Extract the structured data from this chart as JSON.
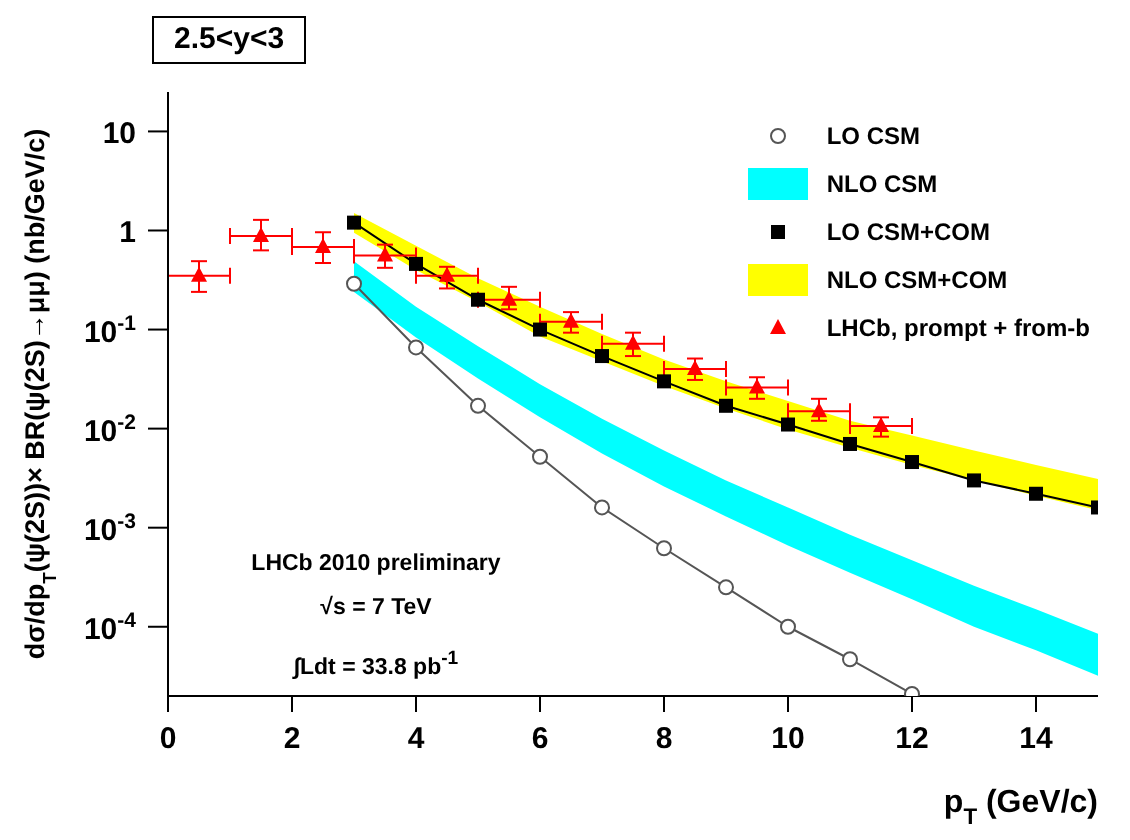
{
  "chart_data": {
    "type": "line",
    "title": "2.5<y<3",
    "xlabel": "p$_{T}$ (GeV/c)",
    "ylabel": "dσ/dp$_{T}$(ψ(2S))× BR(ψ(2S)→μμ) (nb/GeV/c)",
    "log": "y",
    "xlim": [
      0,
      15
    ],
    "xticks": [
      0,
      2,
      4,
      6,
      8,
      10,
      12,
      14
    ],
    "ylim": [
      2e-05,
      25
    ],
    "yticks": [
      {
        "value": 0.0001,
        "label": "10$^{-4}$"
      },
      {
        "value": 0.001,
        "label": "10$^{-3}$"
      },
      {
        "value": 0.01,
        "label": "10$^{-2}$"
      },
      {
        "value": 0.1,
        "label": "10$^{-1}$"
      },
      1,
      10
    ],
    "legend": "top right",
    "annotations": [
      "LHCb 2010 preliminary",
      "√s = 7 TeV",
      "∫Ldt = 33.8 pb$^{-1}$"
    ],
    "series": [
      {
        "name": "LO CSM",
        "color": "#555555",
        "marker": "circle",
        "x": [
          3,
          4,
          5,
          6,
          7,
          8,
          9,
          10,
          11,
          12
        ],
        "values": [
          0.29,
          0.066,
          0.017,
          0.0052,
          0.0016,
          0.00062,
          0.00025,
          0.0001,
          4.7e-05,
          2.1e-05
        ]
      },
      {
        "name": "NLO CSM",
        "type": "area",
        "color": "#00ffff",
        "x": [
          3,
          4,
          5,
          6,
          7,
          8,
          9,
          10,
          11,
          12,
          13,
          14,
          15
        ],
        "values": [
          null,
          null,
          null,
          null,
          null,
          null,
          null,
          null,
          null,
          null,
          null,
          null,
          null
        ],
        "lower": [
          0.24,
          0.083,
          0.032,
          0.013,
          0.0056,
          0.0026,
          0.0013,
          0.00066,
          0.00035,
          0.00019,
          0.0001,
          5.8e-05,
          3.2e-05
        ],
        "upper": [
          0.49,
          0.17,
          0.068,
          0.028,
          0.0126,
          0.006,
          0.003,
          0.0016,
          0.00085,
          0.00047,
          0.00026,
          0.00015,
          8.5e-05
        ]
      },
      {
        "name": "LO CSM+COM",
        "color": "#000000",
        "marker": "square",
        "x": [
          3,
          4,
          5,
          6,
          7,
          8,
          9,
          10,
          11,
          12,
          13,
          14,
          15
        ],
        "values": [
          1.2,
          0.46,
          0.2,
          0.1,
          0.054,
          0.03,
          0.017,
          0.011,
          0.007,
          0.0046,
          0.003,
          0.0022,
          0.0016
        ]
      },
      {
        "name": "NLO CSM+COM",
        "type": "area",
        "color": "#ffff00",
        "x": [
          3,
          4,
          5,
          6,
          7,
          8,
          9,
          10,
          11,
          12,
          13,
          14,
          15
        ],
        "values": [
          null,
          null,
          null,
          null,
          null,
          null,
          null,
          null,
          null,
          null,
          null,
          null,
          null
        ],
        "lower": [
          0.95,
          0.4,
          0.19,
          0.085,
          0.048,
          0.027,
          0.016,
          0.0098,
          0.0064,
          0.0043,
          0.003,
          0.0021,
          0.0015
        ],
        "upper": [
          1.5,
          0.7,
          0.33,
          0.17,
          0.09,
          0.05,
          0.03,
          0.019,
          0.012,
          0.0085,
          0.006,
          0.0043,
          0.0031
        ]
      },
      {
        "name": "LHCb, prompt + from-b",
        "type": "scatter",
        "color": "#ff0000",
        "marker": "triangle",
        "x": [
          0.5,
          1.5,
          2.5,
          3.5,
          4.5,
          5.5,
          6.5,
          7.5,
          8.5,
          9.5,
          10.5,
          11.5
        ],
        "values": [
          0.35,
          0.88,
          0.68,
          0.56,
          0.35,
          0.2,
          0.12,
          0.072,
          0.04,
          0.026,
          0.015,
          0.0106
        ],
        "errors": [
          [
            0.24,
            0.49
          ],
          [
            0.63,
            1.28
          ],
          [
            0.47,
            0.96
          ],
          [
            0.42,
            0.72
          ],
          [
            0.26,
            0.43
          ],
          [
            0.16,
            0.27
          ],
          [
            0.093,
            0.15
          ],
          [
            0.054,
            0.093
          ],
          [
            0.031,
            0.051
          ],
          [
            0.02,
            0.033
          ],
          [
            0.012,
            0.02
          ],
          [
            0.0083,
            0.013
          ]
        ],
        "xerrors": [
          0.5,
          0.5,
          0.5,
          0.5,
          0.5,
          0.5,
          0.5,
          0.5,
          0.5,
          0.5,
          0.5,
          0.5
        ]
      }
    ]
  }
}
